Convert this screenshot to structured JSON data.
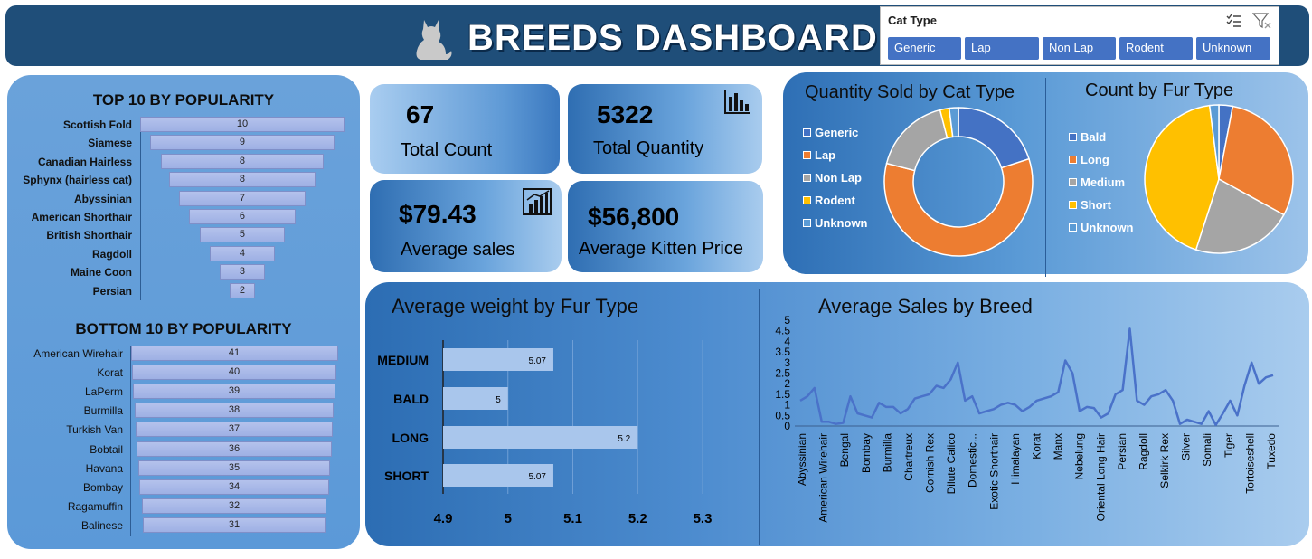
{
  "header": {
    "title": "BREEDS DASHBOARD",
    "logo_icon": "cat-icon",
    "bg_color": "#1f4e79"
  },
  "slicer": {
    "title": "Cat Type",
    "items": [
      "Generic",
      "Lap",
      "Non Lap",
      "Rodent",
      "Unknown"
    ],
    "accent": "#4472c4"
  },
  "top10": {
    "title": "TOP 10 BY POPULARITY",
    "items": [
      {
        "label": "Scottish Fold",
        "value": 10
      },
      {
        "label": "Siamese",
        "value": 9
      },
      {
        "label": "Canadian Hairless",
        "value": 8
      },
      {
        "label": "Sphynx (hairless cat)",
        "value": 8
      },
      {
        "label": "Abyssinian",
        "value": 7
      },
      {
        "label": "American Shorthair",
        "value": 6
      },
      {
        "label": "British Shorthair",
        "value": 5
      },
      {
        "label": "Ragdoll",
        "value": 4
      },
      {
        "label": "Maine Coon",
        "value": 3
      },
      {
        "label": "Persian",
        "value": 2
      }
    ]
  },
  "bottom10": {
    "title": "BOTTOM 10 BY POPULARITY",
    "items": [
      {
        "label": "American Wirehair",
        "value": 41
      },
      {
        "label": "Korat",
        "value": 40
      },
      {
        "label": "LaPerm",
        "value": 39
      },
      {
        "label": "Burmilla",
        "value": 38
      },
      {
        "label": "Turkish Van",
        "value": 37
      },
      {
        "label": "Bobtail",
        "value": 36
      },
      {
        "label": "Havana",
        "value": 35
      },
      {
        "label": "Bombay",
        "value": 34
      },
      {
        "label": "Ragamuffin",
        "value": 32
      },
      {
        "label": "Balinese",
        "value": 31
      }
    ]
  },
  "kpis": {
    "total_count": {
      "value": "67",
      "label": "Total Count"
    },
    "total_quantity": {
      "value": "5322",
      "label": "Total Quantity",
      "icon": "bar-chart-icon"
    },
    "average_sales": {
      "value": "$79.43",
      "label": "Average sales",
      "icon": "chart-board-icon"
    },
    "average_kitten_price": {
      "value": "$56,800",
      "label": "Average Kitten Price"
    }
  },
  "chart_data": [
    {
      "type": "pie",
      "variant": "donut",
      "title": "Quantity Sold by Cat Type",
      "legend": "left",
      "labels": [
        "Generic",
        "Lap",
        "Non Lap",
        "Rodent",
        "Unknown"
      ],
      "values": [
        20,
        59,
        17,
        2,
        2
      ],
      "colors": [
        "#4472c4",
        "#ed7d31",
        "#a5a5a5",
        "#ffc000",
        "#5b9bd5"
      ]
    },
    {
      "type": "pie",
      "title": "Count by Fur Type",
      "legend": "left",
      "labels": [
        "Bald",
        "Long",
        "Medium",
        "Short",
        "Unknown"
      ],
      "values": [
        3,
        30,
        22,
        43,
        2
      ],
      "colors": [
        "#4472c4",
        "#ed7d31",
        "#a5a5a5",
        "#ffc000",
        "#5b9bd5"
      ]
    },
    {
      "type": "bar",
      "orientation": "horizontal",
      "title": "Average weight by Fur Type",
      "categories": [
        "MEDIUM",
        "BALD",
        "LONG",
        "SHORT"
      ],
      "values": [
        5.07,
        5,
        5.2,
        5.07
      ],
      "xlim": [
        4.9,
        5.3
      ],
      "xticks": [
        "4.9",
        "5",
        "5.1",
        "5.2",
        "5.3"
      ]
    },
    {
      "type": "line",
      "title": "Average Sales by Breed",
      "ylim": [
        0,
        5
      ],
      "yticks": [
        "0",
        "0.5",
        "1",
        "1.5",
        "2",
        "2.5",
        "3",
        "3.5",
        "4",
        "4.5",
        "5"
      ],
      "xtick_labels": [
        "Abyssinian",
        "American Wirehair",
        "Bengal",
        "Bombay",
        "Burmilla",
        "Chartreux",
        "Cornish Rex",
        "Dilute Calico",
        "Domestic...",
        "Exotic Shorthair",
        "Himalayan",
        "Korat",
        "Manx",
        "Nebelung",
        "Oriental Long Hair",
        "Persian",
        "Ragdoll",
        "Selkirk Rex",
        "Silver",
        "Somali",
        "Tiger",
        "Tortoiseshell",
        "Tuxedo"
      ],
      "values": [
        1.2,
        1.4,
        1.8,
        0.2,
        0.2,
        0.1,
        0.15,
        1.4,
        0.6,
        0.5,
        0.4,
        1.1,
        0.9,
        0.9,
        0.6,
        0.8,
        1.3,
        1.4,
        1.5,
        1.9,
        1.8,
        2.2,
        3.0,
        1.2,
        1.4,
        0.6,
        0.7,
        0.8,
        1.0,
        1.1,
        1.0,
        0.7,
        0.9,
        1.2,
        1.3,
        1.4,
        1.6,
        3.1,
        2.5,
        0.7,
        0.9,
        0.85,
        0.4,
        0.6,
        1.5,
        1.7,
        4.6,
        1.2,
        1.0,
        1.4,
        1.5,
        1.7,
        1.2,
        0.1,
        0.3,
        0.2,
        0.1,
        0.7,
        0.05,
        0.6,
        1.2,
        0.5,
        1.9,
        3.0,
        2.0,
        2.3,
        2.4
      ]
    }
  ]
}
